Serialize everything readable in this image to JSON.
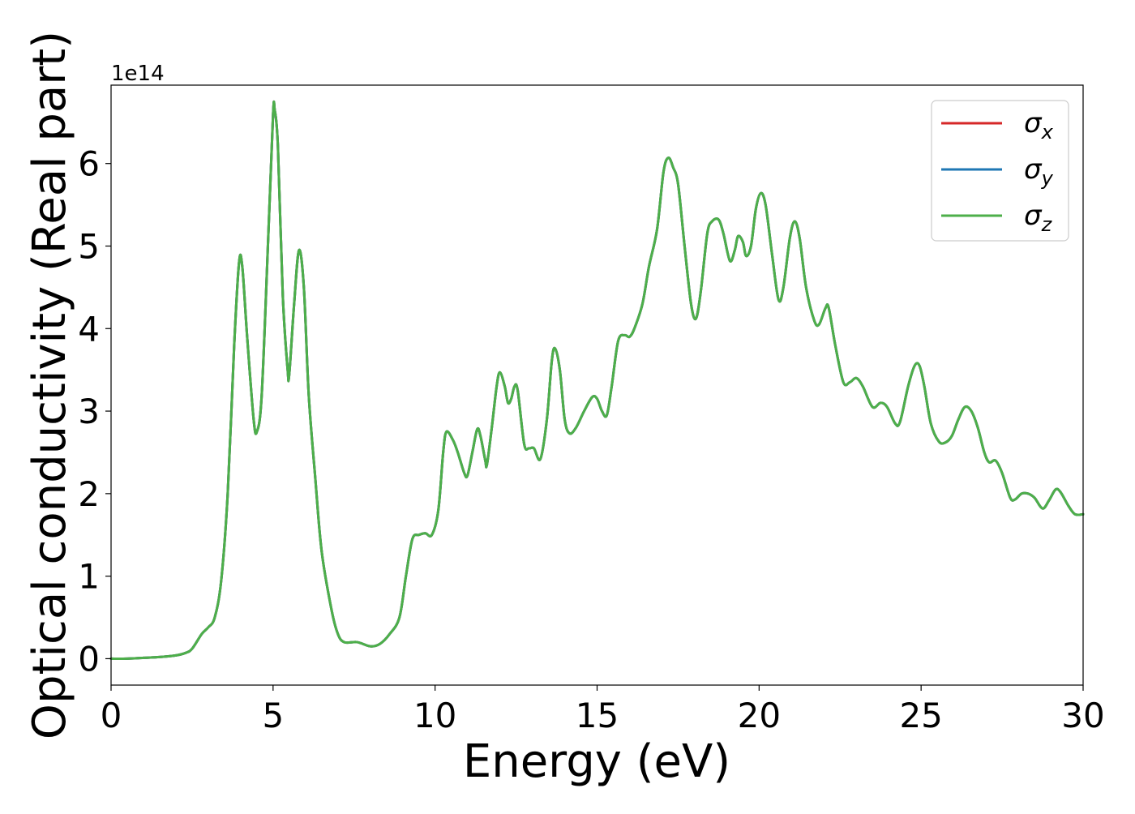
{
  "chart_data": {
    "type": "line",
    "title": "",
    "xlabel": "Energy (eV)",
    "ylabel": "Optical conductivity (Real part)",
    "y_offset_label": "1e14",
    "y_scale_factor": 100000000000000.0,
    "xlim": [
      0,
      30
    ],
    "ylim": [
      -0.32,
      6.95
    ],
    "xticks": [
      0,
      5,
      10,
      15,
      20,
      25,
      30
    ],
    "yticks": [
      0,
      1,
      2,
      3,
      4,
      5,
      6
    ],
    "grid": false,
    "legend_position": "top-right",
    "series_note_overlap": true,
    "series": [
      {
        "name": "σx",
        "legend_base": "σ",
        "legend_sub": "x",
        "color": "#d62728"
      },
      {
        "name": "σy",
        "legend_base": "σ",
        "legend_sub": "y",
        "color": "#1f77b4"
      },
      {
        "name": "σz",
        "legend_base": "σ",
        "legend_sub": "z",
        "color": "#4daf4a"
      }
    ],
    "points": [
      [
        0,
        0.0
      ],
      [
        0.5,
        0.0
      ],
      [
        1.0,
        0.01
      ],
      [
        1.5,
        0.02
      ],
      [
        2.0,
        0.04
      ],
      [
        2.3,
        0.07
      ],
      [
        2.5,
        0.12
      ],
      [
        2.8,
        0.3
      ],
      [
        3.0,
        0.38
      ],
      [
        3.2,
        0.5
      ],
      [
        3.4,
        0.95
      ],
      [
        3.6,
        2.0
      ],
      [
        3.8,
        3.8
      ],
      [
        3.95,
        4.8
      ],
      [
        4.05,
        4.75
      ],
      [
        4.2,
        3.9
      ],
      [
        4.4,
        2.9
      ],
      [
        4.5,
        2.75
      ],
      [
        4.65,
        3.2
      ],
      [
        4.85,
        5.1
      ],
      [
        5.0,
        6.6
      ],
      [
        5.05,
        6.65
      ],
      [
        5.15,
        6.2
      ],
      [
        5.3,
        4.4
      ],
      [
        5.45,
        3.5
      ],
      [
        5.5,
        3.45
      ],
      [
        5.65,
        4.3
      ],
      [
        5.8,
        4.95
      ],
      [
        5.95,
        4.5
      ],
      [
        6.1,
        3.2
      ],
      [
        6.3,
        2.2
      ],
      [
        6.5,
        1.3
      ],
      [
        6.8,
        0.6
      ],
      [
        7.0,
        0.3
      ],
      [
        7.2,
        0.2
      ],
      [
        7.6,
        0.2
      ],
      [
        8.0,
        0.15
      ],
      [
        8.3,
        0.18
      ],
      [
        8.6,
        0.3
      ],
      [
        8.9,
        0.5
      ],
      [
        9.1,
        1.0
      ],
      [
        9.3,
        1.45
      ],
      [
        9.5,
        1.5
      ],
      [
        9.7,
        1.52
      ],
      [
        9.9,
        1.5
      ],
      [
        10.1,
        1.8
      ],
      [
        10.25,
        2.5
      ],
      [
        10.35,
        2.75
      ],
      [
        10.55,
        2.65
      ],
      [
        10.7,
        2.5
      ],
      [
        10.9,
        2.25
      ],
      [
        11.0,
        2.22
      ],
      [
        11.15,
        2.5
      ],
      [
        11.3,
        2.78
      ],
      [
        11.4,
        2.7
      ],
      [
        11.55,
        2.4
      ],
      [
        11.6,
        2.35
      ],
      [
        11.75,
        2.8
      ],
      [
        11.9,
        3.3
      ],
      [
        12.0,
        3.47
      ],
      [
        12.15,
        3.3
      ],
      [
        12.25,
        3.1
      ],
      [
        12.35,
        3.15
      ],
      [
        12.45,
        3.3
      ],
      [
        12.55,
        3.25
      ],
      [
        12.75,
        2.6
      ],
      [
        12.9,
        2.55
      ],
      [
        13.05,
        2.55
      ],
      [
        13.25,
        2.42
      ],
      [
        13.45,
        2.9
      ],
      [
        13.6,
        3.6
      ],
      [
        13.7,
        3.76
      ],
      [
        13.85,
        3.5
      ],
      [
        14.0,
        2.9
      ],
      [
        14.15,
        2.73
      ],
      [
        14.35,
        2.8
      ],
      [
        14.6,
        3.0
      ],
      [
        14.85,
        3.17
      ],
      [
        15.0,
        3.15
      ],
      [
        15.15,
        3.0
      ],
      [
        15.3,
        2.95
      ],
      [
        15.45,
        3.3
      ],
      [
        15.65,
        3.85
      ],
      [
        15.85,
        3.92
      ],
      [
        16.0,
        3.9
      ],
      [
        16.15,
        4.0
      ],
      [
        16.4,
        4.3
      ],
      [
        16.6,
        4.75
      ],
      [
        16.85,
        5.2
      ],
      [
        17.05,
        5.9
      ],
      [
        17.2,
        6.07
      ],
      [
        17.35,
        5.95
      ],
      [
        17.5,
        5.75
      ],
      [
        17.7,
        5.0
      ],
      [
        17.9,
        4.3
      ],
      [
        18.05,
        4.12
      ],
      [
        18.2,
        4.45
      ],
      [
        18.4,
        5.15
      ],
      [
        18.55,
        5.3
      ],
      [
        18.75,
        5.32
      ],
      [
        18.9,
        5.15
      ],
      [
        19.1,
        4.82
      ],
      [
        19.25,
        4.95
      ],
      [
        19.35,
        5.12
      ],
      [
        19.5,
        5.05
      ],
      [
        19.6,
        4.88
      ],
      [
        19.75,
        5.0
      ],
      [
        19.9,
        5.45
      ],
      [
        20.05,
        5.64
      ],
      [
        20.2,
        5.5
      ],
      [
        20.4,
        4.9
      ],
      [
        20.6,
        4.35
      ],
      [
        20.75,
        4.5
      ],
      [
        20.95,
        5.1
      ],
      [
        21.1,
        5.3
      ],
      [
        21.25,
        5.1
      ],
      [
        21.45,
        4.5
      ],
      [
        21.7,
        4.1
      ],
      [
        21.85,
        4.05
      ],
      [
        22.05,
        4.25
      ],
      [
        22.15,
        4.25
      ],
      [
        22.35,
        3.8
      ],
      [
        22.6,
        3.35
      ],
      [
        22.8,
        3.35
      ],
      [
        23.0,
        3.4
      ],
      [
        23.2,
        3.3
      ],
      [
        23.5,
        3.05
      ],
      [
        23.75,
        3.1
      ],
      [
        23.95,
        3.05
      ],
      [
        24.2,
        2.85
      ],
      [
        24.35,
        2.87
      ],
      [
        24.6,
        3.3
      ],
      [
        24.8,
        3.55
      ],
      [
        24.95,
        3.55
      ],
      [
        25.1,
        3.3
      ],
      [
        25.3,
        2.85
      ],
      [
        25.55,
        2.63
      ],
      [
        25.75,
        2.62
      ],
      [
        25.95,
        2.7
      ],
      [
        26.15,
        2.9
      ],
      [
        26.35,
        3.05
      ],
      [
        26.55,
        3.0
      ],
      [
        26.75,
        2.8
      ],
      [
        26.95,
        2.5
      ],
      [
        27.1,
        2.38
      ],
      [
        27.3,
        2.4
      ],
      [
        27.5,
        2.25
      ],
      [
        27.75,
        1.95
      ],
      [
        27.9,
        1.93
      ],
      [
        28.1,
        2.0
      ],
      [
        28.3,
        2.0
      ],
      [
        28.5,
        1.95
      ],
      [
        28.75,
        1.82
      ],
      [
        28.95,
        1.92
      ],
      [
        29.15,
        2.05
      ],
      [
        29.3,
        2.02
      ],
      [
        29.55,
        1.85
      ],
      [
        29.75,
        1.75
      ],
      [
        30.0,
        1.75
      ]
    ]
  }
}
